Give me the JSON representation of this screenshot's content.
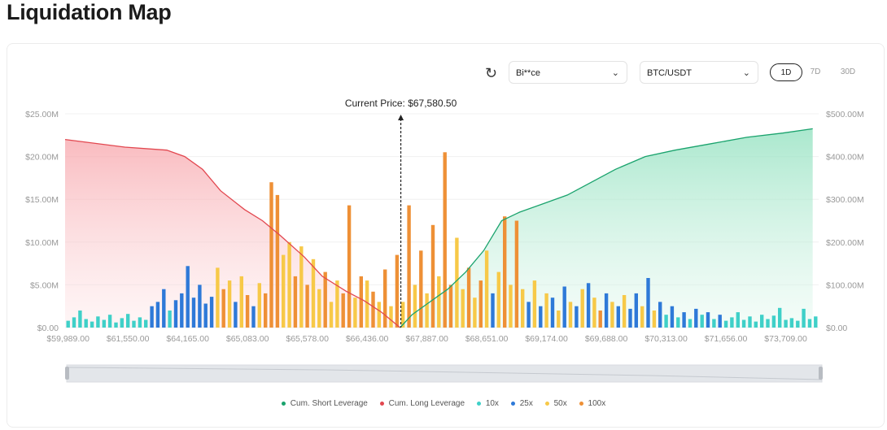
{
  "page_title": "Liquidation Map",
  "controls": {
    "refresh_icon": "refresh-icon",
    "exchange": "Bi**ce",
    "pair": "BTC/USDT",
    "timeframes": [
      "1D",
      "7D",
      "30D"
    ],
    "active_timeframe": "1D"
  },
  "colors": {
    "10x": "#3fd0c8",
    "25x": "#2e79d8",
    "50x": "#f7c948",
    "100x": "#ee9036",
    "short": "#1aa36d",
    "long": "#e2474f"
  },
  "chart_data": {
    "type": "bar",
    "current_price_label": "Current Price: $67,580.50",
    "current_price_index": 56,
    "x_tick_labels": [
      "$59,989.00",
      "$61,550.00",
      "$64,165.00",
      "$65,083.00",
      "$65,578.00",
      "$66,436.00",
      "$67,887.00",
      "$68,651.00",
      "$69,174.00",
      "$69,688.00",
      "$70,313.00",
      "$71,656.00",
      "$73,709.00"
    ],
    "x_tick_every": 10,
    "left_axis": {
      "ticks": [
        "$0.00",
        "$5.00M",
        "$10.00M",
        "$15.00M",
        "$20.00M",
        "$25.00M"
      ],
      "range_millions": [
        0,
        25
      ]
    },
    "right_axis": {
      "ticks": [
        "$0.00",
        "$100.00M",
        "$200.00M",
        "$300.00M",
        "$400.00M",
        "$500.00M"
      ],
      "range_millions": [
        0,
        500
      ]
    },
    "bar_values_millions": [
      0.8,
      1.2,
      2.0,
      1.0,
      0.7,
      1.3,
      0.9,
      1.5,
      0.6,
      1.1,
      1.6,
      0.8,
      1.2,
      0.9,
      2.5,
      3.0,
      4.5,
      2.0,
      3.2,
      4.0,
      7.2,
      3.5,
      5.0,
      2.8,
      3.6,
      7.0,
      4.5,
      5.5,
      3.0,
      6.0,
      3.8,
      2.5,
      5.2,
      4.0,
      17.0,
      15.5,
      8.5,
      10.0,
      6.0,
      9.5,
      5.0,
      8.0,
      4.5,
      6.5,
      3.0,
      5.5,
      4.0,
      14.3,
      3.5,
      6.0,
      5.5,
      4.2,
      3.0,
      6.8,
      2.5,
      8.5,
      3.0,
      14.3,
      5.0,
      9.0,
      4.0,
      12.0,
      6.0,
      20.5,
      5.0,
      10.5,
      4.5,
      7.0,
      3.5,
      5.5,
      9.0,
      4.0,
      6.5,
      13.0,
      5.0,
      12.5,
      4.5,
      3.0,
      5.5,
      2.5,
      4.0,
      3.5,
      2.0,
      4.8,
      3.0,
      2.5,
      4.5,
      5.2,
      3.5,
      2.0,
      4.0,
      3.0,
      2.5,
      3.8,
      2.2,
      4.0,
      2.5,
      5.8,
      2.0,
      3.0,
      1.5,
      2.5,
      1.2,
      1.8,
      1.0,
      2.2,
      1.5,
      1.8,
      1.0,
      1.5,
      0.8,
      1.2,
      1.8,
      0.9,
      1.3,
      0.7,
      1.5,
      1.0,
      1.4,
      2.3,
      0.9,
      1.1,
      0.8,
      2.2,
      1.0,
      1.3
    ],
    "bar_leverage": [
      "10x",
      "10x",
      "10x",
      "10x",
      "10x",
      "10x",
      "10x",
      "10x",
      "10x",
      "10x",
      "10x",
      "10x",
      "10x",
      "10x",
      "25x",
      "25x",
      "25x",
      "10x",
      "25x",
      "25x",
      "25x",
      "25x",
      "25x",
      "25x",
      "25x",
      "50x",
      "100x",
      "50x",
      "25x",
      "50x",
      "100x",
      "25x",
      "50x",
      "100x",
      "100x",
      "100x",
      "50x",
      "50x",
      "100x",
      "50x",
      "100x",
      "50x",
      "50x",
      "100x",
      "50x",
      "50x",
      "100x",
      "100x",
      "50x",
      "100x",
      "50x",
      "100x",
      "50x",
      "100x",
      "50x",
      "100x",
      "50x",
      "100x",
      "50x",
      "100x",
      "50x",
      "100x",
      "50x",
      "100x",
      "100x",
      "50x",
      "50x",
      "100x",
      "50x",
      "100x",
      "50x",
      "25x",
      "50x",
      "100x",
      "50x",
      "100x",
      "50x",
      "25x",
      "50x",
      "25x",
      "50x",
      "25x",
      "50x",
      "25x",
      "50x",
      "25x",
      "50x",
      "25x",
      "50x",
      "100x",
      "25x",
      "50x",
      "25x",
      "50x",
      "25x",
      "25x",
      "50x",
      "25x",
      "50x",
      "25x",
      "10x",
      "25x",
      "10x",
      "25x",
      "10x",
      "25x",
      "10x",
      "25x",
      "10x",
      "25x",
      "10x",
      "10x",
      "10x",
      "10x",
      "10x",
      "10x",
      "10x",
      "10x",
      "10x",
      "10x",
      "10x",
      "10x",
      "10x",
      "10x",
      "10x",
      "10x"
    ],
    "cum_long_millions": [
      [
        0,
        440
      ],
      [
        10,
        422
      ],
      [
        17,
        415
      ],
      [
        20,
        400
      ],
      [
        23,
        370
      ],
      [
        26,
        320
      ],
      [
        30,
        276
      ],
      [
        33,
        250
      ],
      [
        36,
        215
      ],
      [
        40,
        165
      ],
      [
        43,
        120
      ],
      [
        47,
        85
      ],
      [
        50,
        63
      ],
      [
        53,
        35
      ],
      [
        56,
        0
      ]
    ],
    "cum_short_millions": [
      [
        56,
        0
      ],
      [
        58,
        30
      ],
      [
        61,
        60
      ],
      [
        64,
        90
      ],
      [
        67,
        130
      ],
      [
        70,
        180
      ],
      [
        73,
        250
      ],
      [
        76,
        270
      ],
      [
        80,
        290
      ],
      [
        84,
        310
      ],
      [
        88,
        340
      ],
      [
        92,
        370
      ],
      [
        97,
        400
      ],
      [
        102,
        415
      ],
      [
        108,
        430
      ],
      [
        114,
        445
      ],
      [
        120,
        455
      ],
      [
        125,
        465
      ]
    ],
    "legend": [
      "Cum. Short Leverage",
      "Cum. Long Leverage",
      "10x",
      "25x",
      "50x",
      "100x"
    ]
  }
}
